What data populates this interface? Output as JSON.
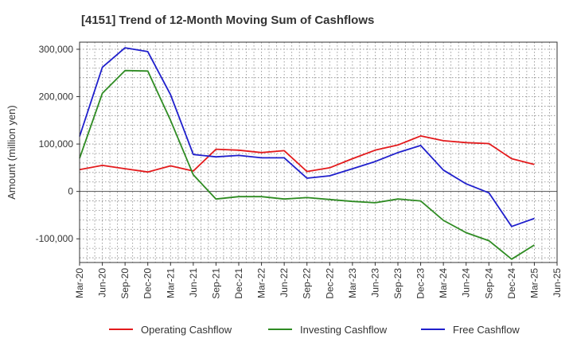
{
  "chart_data": {
    "type": "line",
    "title": "[4151]  Trend of 12-Month Moving Sum of Cashflows",
    "xlabel": "",
    "ylabel": "Amount (million yen)",
    "ylim": [
      -150000,
      315000
    ],
    "yticks": [
      -100000,
      0,
      100000,
      200000,
      300000
    ],
    "ytick_labels": [
      "-100,000",
      "0",
      "100,000",
      "200,000",
      "300,000"
    ],
    "categories": [
      "Mar-20",
      "Jun-20",
      "Sep-20",
      "Dec-20",
      "Mar-21",
      "Jun-21",
      "Sep-21",
      "Dec-21",
      "Mar-22",
      "Jun-22",
      "Sep-22",
      "Dec-22",
      "Mar-23",
      "Jun-23",
      "Sep-23",
      "Dec-23",
      "Mar-24",
      "Jun-24",
      "Sep-24",
      "Dec-24",
      "Mar-25",
      "Jun-25"
    ],
    "grid": true,
    "legend_position": "bottom",
    "series": [
      {
        "name": "Operating Cashflow",
        "color": "#e31a1c",
        "values": [
          46000,
          55000,
          48000,
          41000,
          54000,
          43000,
          89000,
          87000,
          82000,
          86000,
          42000,
          50000,
          69000,
          87000,
          98000,
          117000,
          107000,
          103000,
          101000,
          69000,
          57000,
          null
        ]
      },
      {
        "name": "Investing Cashflow",
        "color": "#2e8b22",
        "values": [
          70000,
          207000,
          255000,
          254000,
          150000,
          35000,
          -16000,
          -11000,
          -11000,
          -16000,
          -13000,
          -17000,
          -21000,
          -24000,
          -16000,
          -20000,
          -61000,
          -87000,
          -104000,
          -143000,
          -113000,
          null
        ]
      },
      {
        "name": "Free Cashflow",
        "color": "#1f1fcc",
        "values": [
          116000,
          262000,
          303000,
          295000,
          204000,
          78000,
          73000,
          76000,
          71000,
          71000,
          28000,
          33000,
          48000,
          63000,
          82000,
          97000,
          45000,
          16000,
          -3000,
          -74000,
          -57000,
          null
        ]
      }
    ]
  }
}
